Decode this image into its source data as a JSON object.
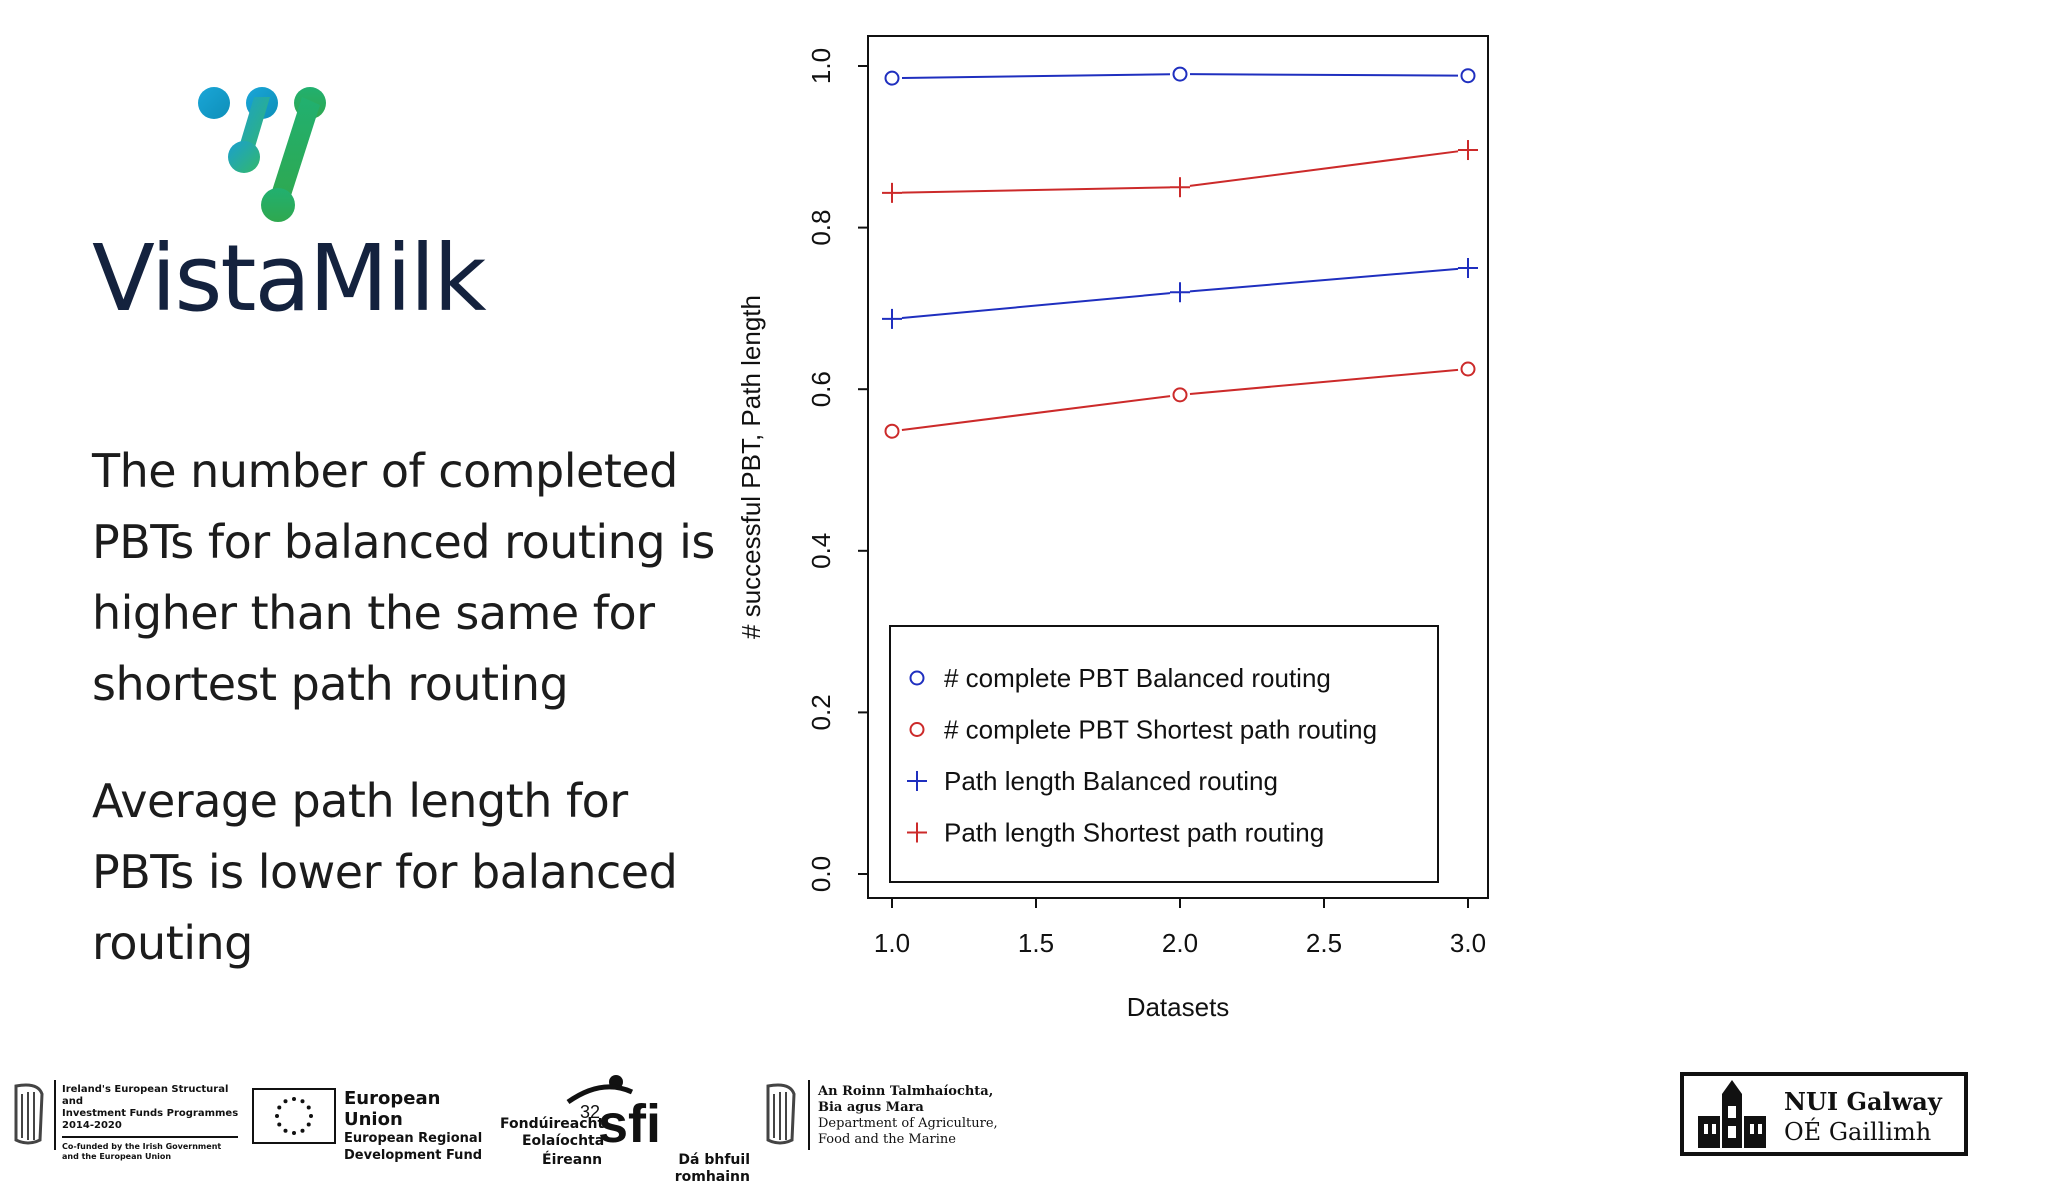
{
  "brand": {
    "name": "VistaMilk"
  },
  "bullets": [
    "The number of completed PBTs for balanced routing is higher than the same for shortest path routing",
    "Average path length for PBTs is lower for balanced routing"
  ],
  "chart_data": {
    "type": "line",
    "title": "",
    "xlabel": "Datasets",
    "ylabel": "# successful PBT, Path length",
    "xlim": [
      1.0,
      3.0
    ],
    "ylim": [
      0.0,
      1.0
    ],
    "xticks": [
      "1.0",
      "1.5",
      "2.0",
      "2.5",
      "3.0"
    ],
    "yticks": [
      "0.0",
      "0.2",
      "0.4",
      "0.6",
      "0.8",
      "1.0"
    ],
    "x": [
      1,
      2,
      3
    ],
    "grid": false,
    "legend_position": "bottom-center",
    "series": [
      {
        "name": "# complete PBT Balanced routing",
        "values": [
          0.985,
          0.99,
          0.988
        ],
        "color": "#1f2fbf",
        "marker": "circle"
      },
      {
        "name": "# complete PBT Shortest path routing",
        "values": [
          0.548,
          0.593,
          0.625
        ],
        "color": "#cc2a2a",
        "marker": "circle"
      },
      {
        "name": "Path length Balanced routing",
        "values": [
          0.687,
          0.72,
          0.75
        ],
        "color": "#1f2fbf",
        "marker": "plus"
      },
      {
        "name": "Path length Shortest path routing",
        "values": [
          0.843,
          0.85,
          0.896
        ],
        "color": "#cc2a2a",
        "marker": "plus"
      }
    ]
  },
  "footer": {
    "esif": {
      "line1": "Ireland's European Structural and",
      "line2": "Investment Funds Programmes",
      "line3": "2014-2020",
      "cofund1": "Co-funded by the Irish Government",
      "cofund2": "and the European Union"
    },
    "eu": {
      "title": "European Union",
      "sub1": "European Regional",
      "sub2": "Development Fund"
    },
    "sfi": {
      "line1": "Fondúireacht",
      "line2": "Eolaíochta",
      "line3": "Éireann",
      "tagline": "Dá bhfuil romhainn",
      "logo": "sfi",
      "number": "32"
    },
    "dept": {
      "line1": "An Roinn Talmhaíochta,",
      "line2": "Bia agus Mara",
      "line3": "Department of Agriculture,",
      "line4": "Food and the Marine"
    },
    "nui": {
      "line1": "NUI Galway",
      "line2": "OÉ Gaillimh"
    }
  }
}
